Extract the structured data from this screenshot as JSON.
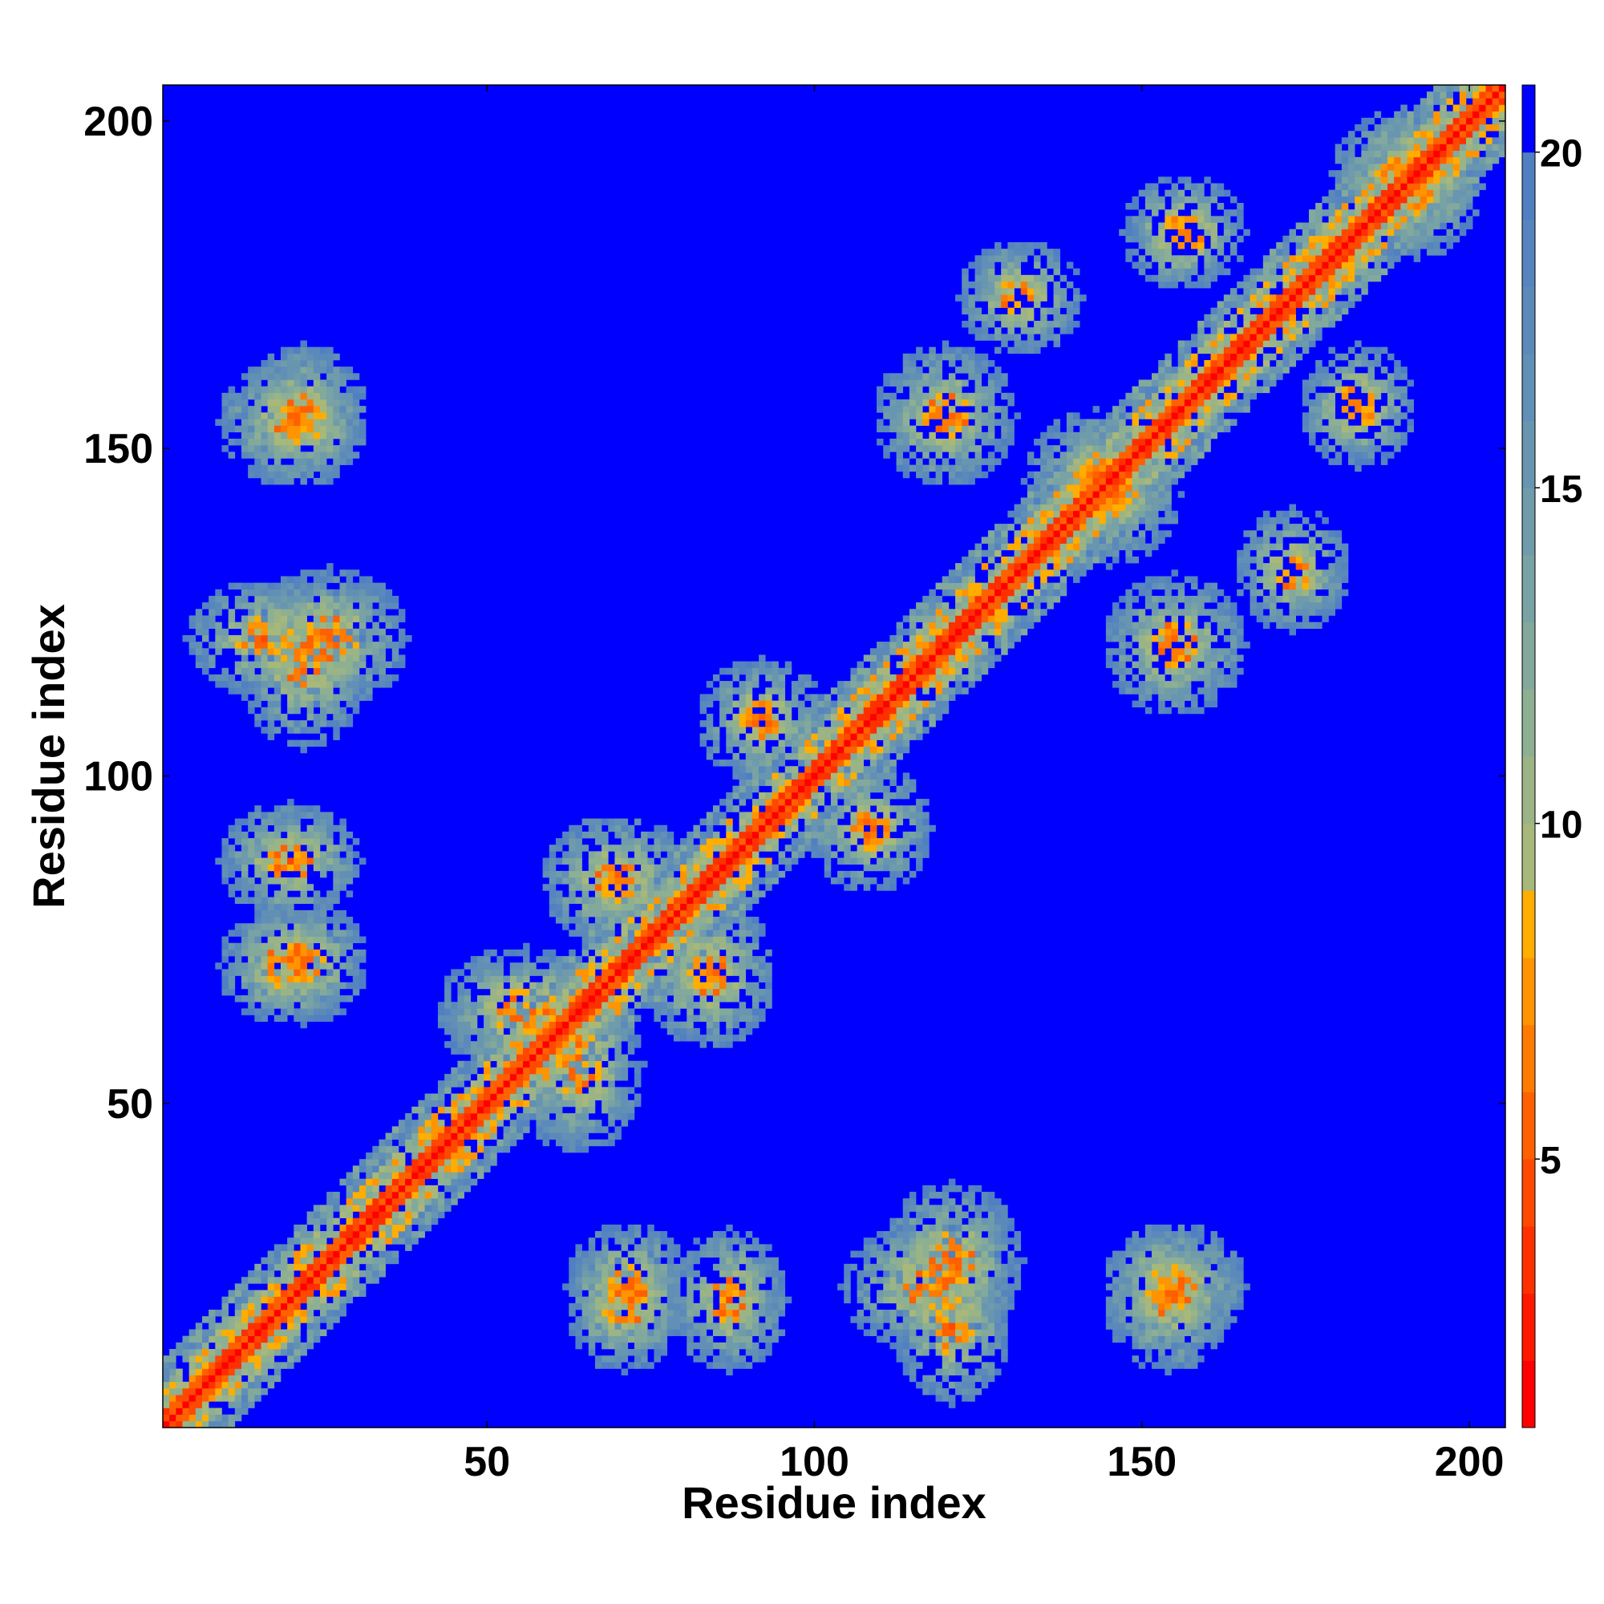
{
  "chart_data": {
    "type": "heatmap",
    "title": "",
    "xlabel": "Residue index",
    "ylabel": "Residue index",
    "xlim": [
      1,
      205
    ],
    "ylim": [
      1,
      205
    ],
    "x_ticks": [
      50,
      100,
      150,
      200
    ],
    "y_ticks": [
      50,
      100,
      150,
      200
    ],
    "colorbar": {
      "range": [
        1,
        21
      ],
      "ticks": [
        5,
        10,
        15,
        20
      ],
      "levels": [
        {
          "from": 1,
          "to": 2,
          "color": "#ff0000"
        },
        {
          "from": 2,
          "to": 3,
          "color": "#ff1800"
        },
        {
          "from": 3,
          "to": 4,
          "color": "#ff3000"
        },
        {
          "from": 4,
          "to": 5,
          "color": "#ff4800"
        },
        {
          "from": 5,
          "to": 6,
          "color": "#ff6000"
        },
        {
          "from": 6,
          "to": 7,
          "color": "#ff7a00"
        },
        {
          "from": 7,
          "to": 8,
          "color": "#ff9400"
        },
        {
          "from": 8,
          "to": 9,
          "color": "#ffae00"
        },
        {
          "from": 9,
          "to": 10,
          "color": "#a8b87a"
        },
        {
          "from": 10,
          "to": 11,
          "color": "#9bb486"
        },
        {
          "from": 11,
          "to": 12,
          "color": "#8eb092"
        },
        {
          "from": 12,
          "to": 13,
          "color": "#82a99c"
        },
        {
          "from": 13,
          "to": 14,
          "color": "#78a2a4"
        },
        {
          "from": 14,
          "to": 15,
          "color": "#6f9bab"
        },
        {
          "from": 15,
          "to": 16,
          "color": "#6896b0"
        },
        {
          "from": 16,
          "to": 17,
          "color": "#618fb5"
        },
        {
          "from": 17,
          "to": 18,
          "color": "#5b89ba"
        },
        {
          "from": 18,
          "to": 19,
          "color": "#5684be"
        },
        {
          "from": 19,
          "to": 20,
          "color": "#507fc2"
        },
        {
          "from": 20,
          "to": 21,
          "color": "#0000ff"
        }
      ]
    },
    "background_color": "#0000ff",
    "value_range": [
      1,
      21
    ],
    "symmetric": true,
    "contact_regions": [
      {
        "i": [
          1,
          205
        ],
        "j": [
          1,
          205
        ],
        "diagonal_band": true,
        "width": 6
      },
      {
        "i": [
          48,
          64
        ],
        "j": [
          60,
          68
        ]
      },
      {
        "i": [
          80,
          88
        ],
        "j": [
          64,
          76
        ]
      },
      {
        "i": [
          116,
          126
        ],
        "j": [
          20,
          32
        ]
      },
      {
        "i": [
          118,
          124
        ],
        "j": [
          10,
          22
        ]
      },
      {
        "i": [
          180,
          186
        ],
        "j": [
          153,
          160
        ]
      },
      {
        "i": [
          150,
          160
        ],
        "j": [
          115,
          125
        ]
      },
      {
        "i": [
          18,
          26
        ],
        "j": [
          150,
          160
        ]
      },
      {
        "i": [
          18,
          26
        ],
        "j": [
          110,
          125
        ]
      },
      {
        "i": [
          18,
          26
        ],
        "j": [
          68,
          75
        ]
      },
      {
        "i": [
          68,
          74
        ],
        "j": [
          15,
          22
        ]
      },
      {
        "i": [
          84,
          90
        ],
        "j": [
          15,
          25
        ]
      },
      {
        "i": [
          150,
          158
        ],
        "j": [
          15,
          25
        ]
      },
      {
        "i": [
          105,
          112
        ],
        "j": [
          88,
          96
        ]
      },
      {
        "i": [
          138,
          148
        ],
        "j": [
          140,
          150
        ]
      },
      {
        "i": [
          170,
          176
        ],
        "j": [
          128,
          135
        ]
      },
      {
        "i": [
          188,
          196
        ],
        "j": [
          185,
          195
        ]
      }
    ]
  }
}
